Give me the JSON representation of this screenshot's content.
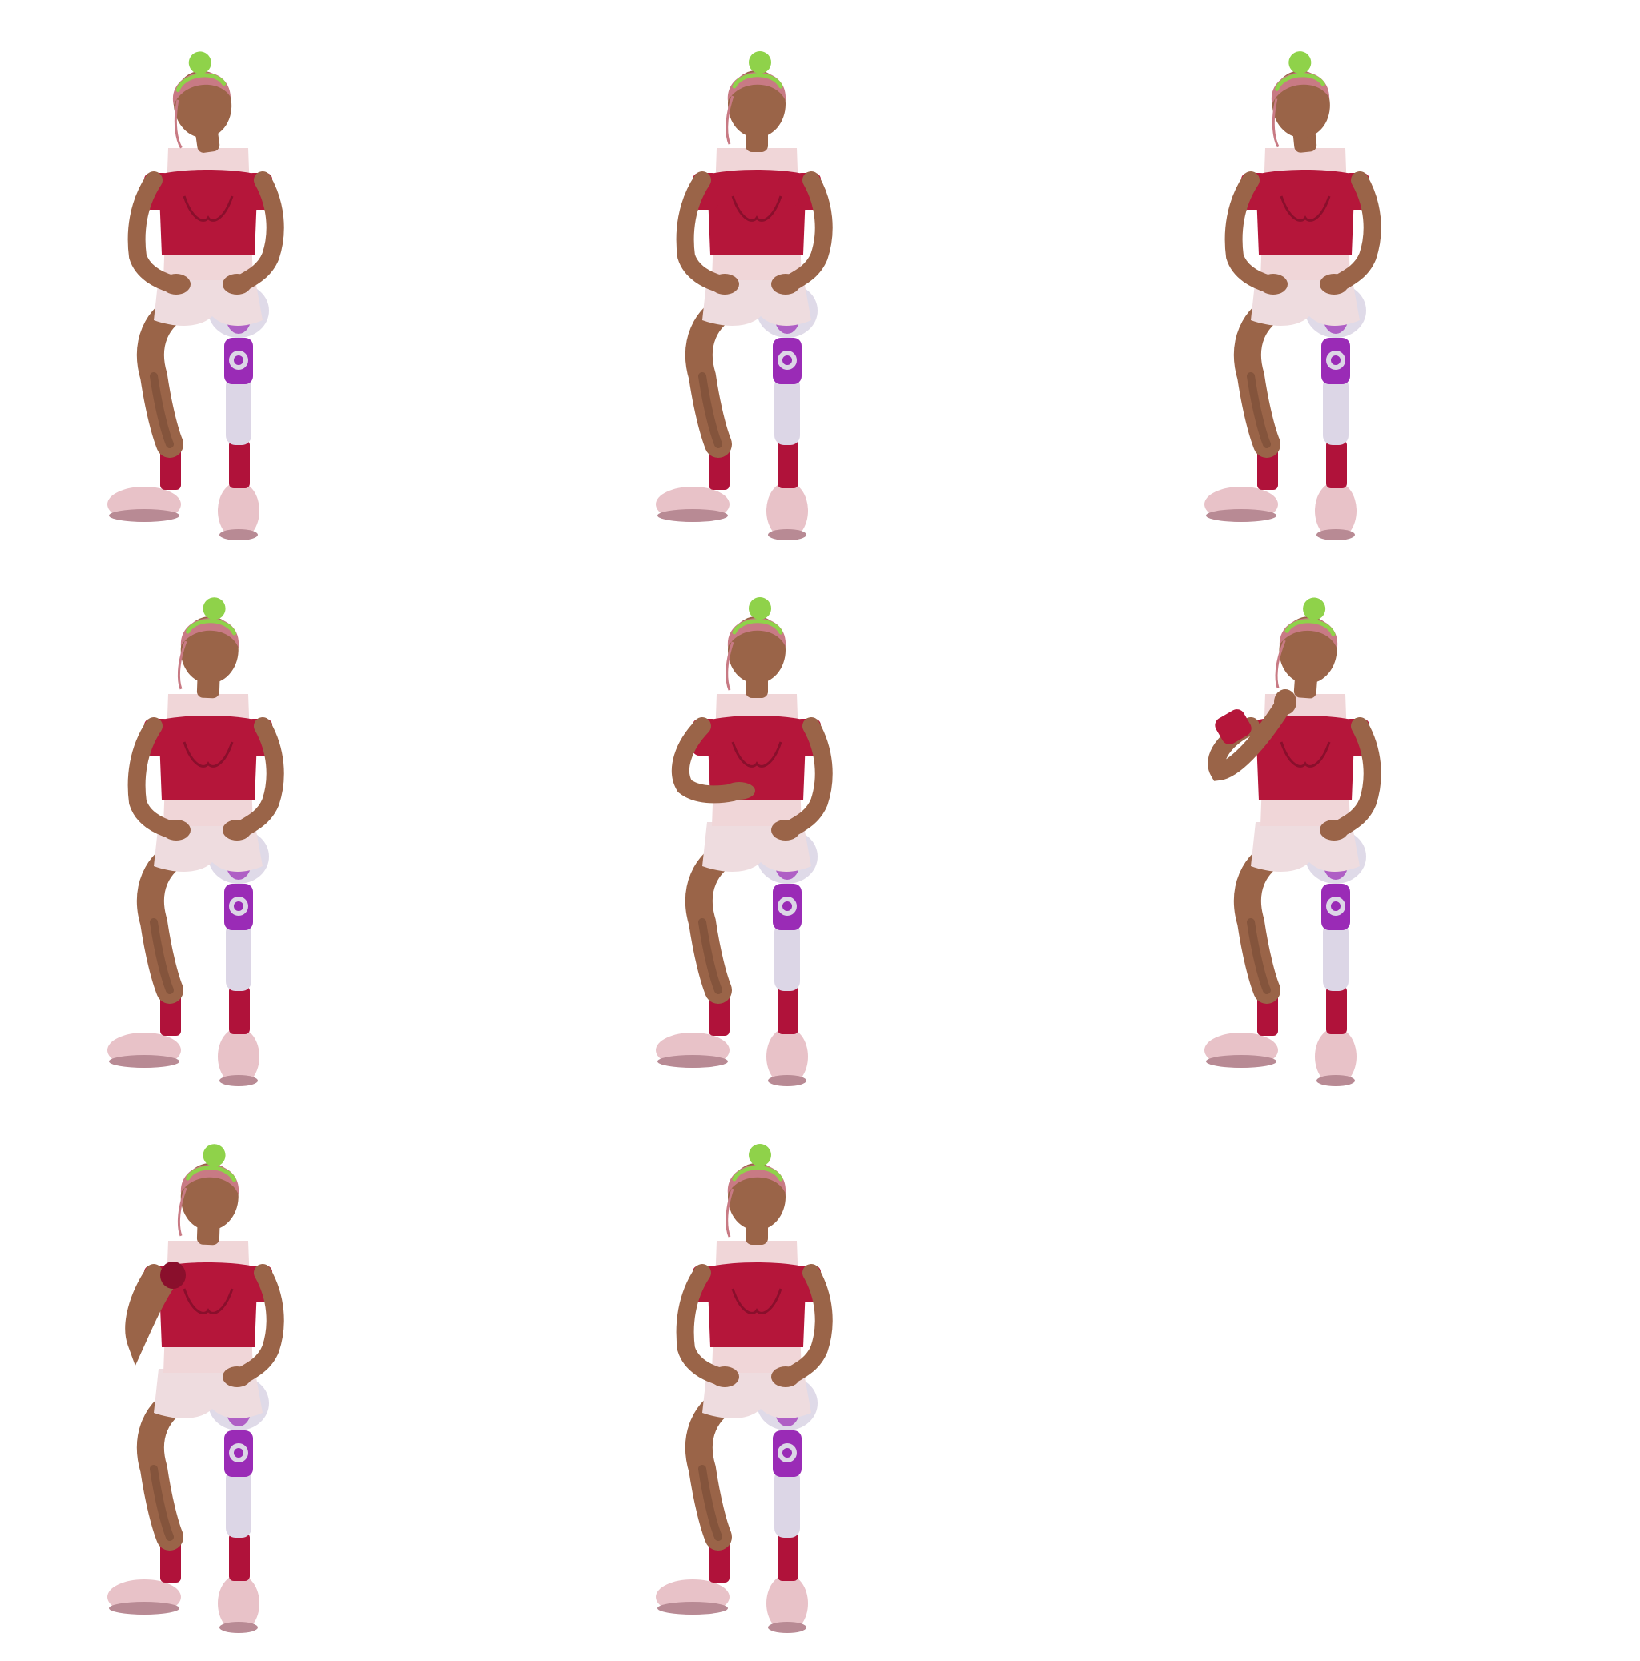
{
  "sprite_sheet": {
    "background_color": "#ffffff",
    "frame_count": 8,
    "character": {
      "description_icon": "sitting-woman-prosthetic-leg-sprite",
      "colors": {
        "skin": "#9a6448",
        "skin_shadow": "#6e4430",
        "hair": "#c87a84",
        "hair_highlight": "#8fd24a",
        "top": "#b5163a",
        "top_shadow": "#8a0f2c",
        "undershirt": "#f0d6d8",
        "shorts": "#eedcdf",
        "socks": "#b0123a",
        "shoes": "#e8c2c8",
        "shoe_sole": "#b88a94",
        "prosthetic_purple": "#9a2bb6",
        "prosthetic_glass": "#dcd6e6"
      }
    },
    "frames": [
      {
        "pose": "head-turned-left",
        "left_arm": "on-knee",
        "right_arm": "on-knee",
        "head_tilt": -8
      },
      {
        "pose": "head-forward",
        "left_arm": "on-knee",
        "right_arm": "on-knee",
        "head_tilt": 0
      },
      {
        "pose": "head-turned-left",
        "left_arm": "on-knee",
        "right_arm": "on-knee",
        "head_tilt": -6
      },
      {
        "pose": "head-forward",
        "left_arm": "on-knee",
        "right_arm": "on-knee",
        "head_tilt": 2
      },
      {
        "pose": "gesture",
        "left_arm": "raised-to-waist",
        "right_arm": "on-knee",
        "head_tilt": 0
      },
      {
        "pose": "hand-to-chest-high",
        "left_arm": "to-shoulder",
        "right_arm": "on-knee",
        "head_tilt": 4
      },
      {
        "pose": "hand-to-chest",
        "left_arm": "to-chest",
        "right_arm": "on-knee",
        "head_tilt": 2
      },
      {
        "pose": "head-forward",
        "left_arm": "on-knee",
        "right_arm": "on-knee",
        "head_tilt": 0
      }
    ]
  }
}
